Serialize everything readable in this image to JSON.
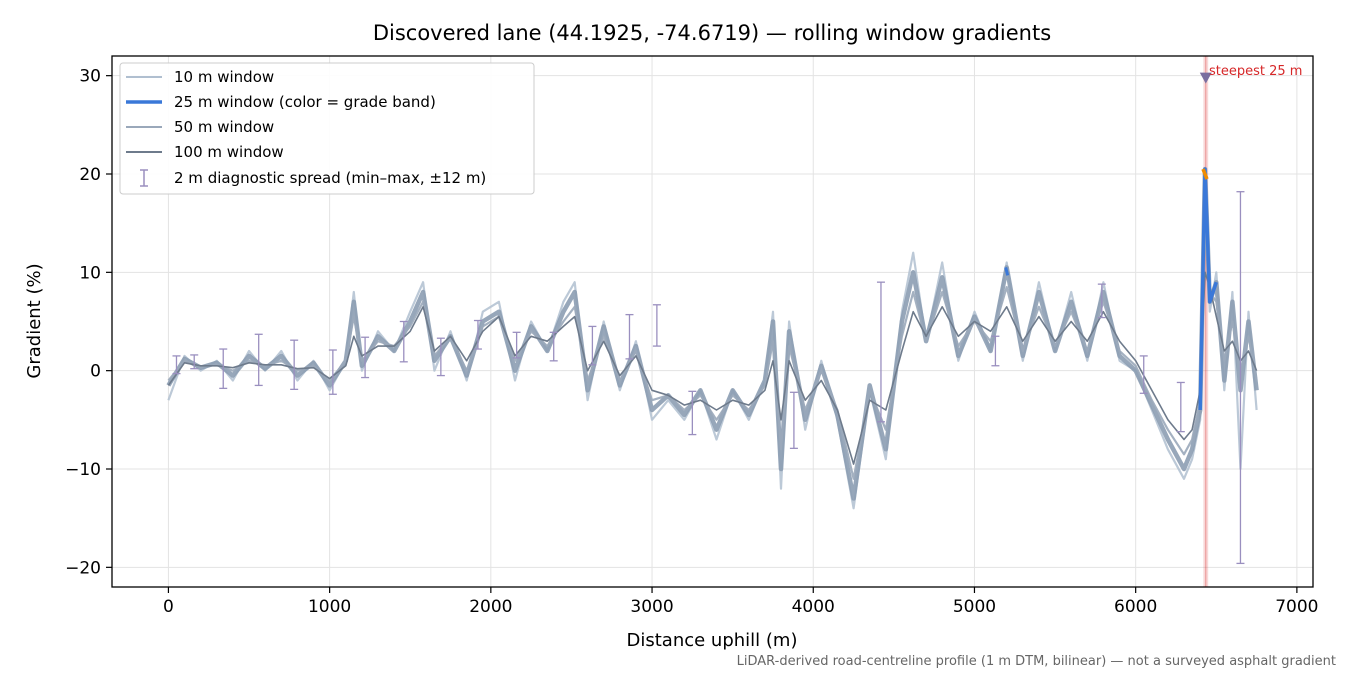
{
  "chart_data": {
    "type": "line",
    "title": "Discovered lane (44.1925, -74.6719) — rolling window gradients",
    "xlabel": "Distance uphill (m)",
    "ylabel": "Gradient (%)",
    "xlim": [
      -350,
      7100
    ],
    "ylim": [
      -22,
      32
    ],
    "xticks": [
      0,
      1000,
      2000,
      3000,
      4000,
      5000,
      6000,
      7000
    ],
    "yticks": [
      -20,
      -10,
      0,
      10,
      20,
      30
    ],
    "xtick_labels": [
      "0",
      "1000",
      "2000",
      "3000",
      "4000",
      "5000",
      "6000",
      "7000"
    ],
    "ytick_labels": [
      "−20",
      "−10",
      "0",
      "10",
      "20",
      "30"
    ],
    "grid": true,
    "legend_position": "top-left",
    "footnote": "LiDAR-derived road-centreline profile (1 m DTM, bilinear) — not a surveyed asphalt gradient",
    "annotation": {
      "text": "steepest 25 m",
      "x": 6435,
      "y": 29.8,
      "band": [
        6420,
        6450
      ]
    },
    "colors": {
      "w10": "#b0bfd0",
      "w25": "#8c9db2",
      "w25_highlight": "#3a78d8",
      "w25_orange": "#f08c00",
      "w50": "#9aa8ba",
      "w100": "#6e7b8c",
      "spread": "#9a8fbf",
      "steepest": "#d62728",
      "marker": "#7a6ea0"
    },
    "series": [
      {
        "name": "10 m window",
        "x": [
          0,
          100,
          200,
          300,
          400,
          500,
          600,
          700,
          800,
          900,
          1000,
          1100,
          1150,
          1200,
          1300,
          1400,
          1500,
          1580,
          1650,
          1750,
          1850,
          1950,
          2050,
          2150,
          2250,
          2350,
          2450,
          2520,
          2600,
          2700,
          2800,
          2900,
          3000,
          3100,
          3200,
          3300,
          3400,
          3500,
          3600,
          3700,
          3750,
          3800,
          3850,
          3950,
          4050,
          4150,
          4250,
          4350,
          4450,
          4550,
          4620,
          4700,
          4800,
          4900,
          5000,
          5100,
          5200,
          5300,
          5400,
          5500,
          5600,
          5700,
          5800,
          5900,
          6000,
          6100,
          6200,
          6300,
          6350,
          6400,
          6430,
          6460,
          6500,
          6550,
          6600,
          6650,
          6700,
          6750
        ],
        "y": [
          -3,
          1.5,
          0,
          1,
          -1,
          2,
          0,
          2,
          -1,
          1,
          -2,
          1,
          8,
          0,
          4,
          2,
          6,
          9,
          0,
          4,
          -1,
          6,
          7,
          -1,
          5,
          2,
          7,
          9,
          -3,
          5,
          -2,
          3,
          -5,
          -3,
          -5,
          -2,
          -7,
          -2,
          -5,
          -1,
          6,
          -12,
          5,
          -6,
          1,
          -5,
          -14,
          -2,
          -9,
          6,
          12,
          3,
          11,
          1,
          6,
          2,
          11,
          1,
          9,
          2,
          8,
          1,
          9,
          1,
          0,
          -4,
          -8,
          -11,
          -9,
          -5,
          20,
          6,
          10,
          -2,
          8,
          -10,
          6,
          -4
        ]
      },
      {
        "name": "25 m window (color = grade band)",
        "x": [
          0,
          100,
          200,
          300,
          400,
          500,
          600,
          700,
          800,
          900,
          1000,
          1100,
          1150,
          1200,
          1300,
          1400,
          1500,
          1580,
          1650,
          1750,
          1850,
          1950,
          2050,
          2150,
          2250,
          2350,
          2450,
          2520,
          2600,
          2700,
          2800,
          2900,
          3000,
          3100,
          3200,
          3300,
          3400,
          3500,
          3600,
          3700,
          3750,
          3800,
          3850,
          3950,
          4050,
          4150,
          4250,
          4350,
          4450,
          4550,
          4620,
          4700,
          4800,
          4900,
          5000,
          5100,
          5200,
          5300,
          5400,
          5500,
          5600,
          5700,
          5800,
          5900,
          6000,
          6100,
          6200,
          6300,
          6350,
          6400,
          6430,
          6460,
          6500,
          6550,
          6600,
          6650,
          6700,
          6750
        ],
        "y": [
          -1.5,
          1.2,
          0.3,
          0.8,
          -0.5,
          1.5,
          0.2,
          1.5,
          -0.5,
          0.8,
          -1.5,
          1,
          7,
          0.5,
          3.5,
          2,
          5,
          8,
          1,
          3.5,
          -0.5,
          5,
          6,
          0,
          4.5,
          2,
          6,
          8,
          -2,
          4.5,
          -1.5,
          2.5,
          -4,
          -2.5,
          -4.5,
          -2,
          -6,
          -2,
          -4.5,
          -1,
          5,
          -10,
          4,
          -5,
          0.5,
          -4.5,
          -13,
          -1.5,
          -8,
          5,
          10,
          3,
          9.5,
          1.5,
          5.5,
          2,
          10.5,
          1.5,
          8,
          2,
          7,
          1.5,
          8,
          1.5,
          0,
          -3.5,
          -7,
          -10,
          -8,
          -4,
          20.5,
          7,
          9,
          -1,
          7,
          -2,
          5,
          -2
        ]
      },
      {
        "name": "50 m window",
        "x": [
          0,
          100,
          200,
          300,
          400,
          500,
          600,
          700,
          800,
          900,
          1000,
          1100,
          1150,
          1200,
          1300,
          1400,
          1500,
          1580,
          1650,
          1750,
          1850,
          1950,
          2050,
          2150,
          2250,
          2350,
          2450,
          2520,
          2600,
          2700,
          2800,
          2900,
          3000,
          3100,
          3200,
          3300,
          3400,
          3500,
          3600,
          3700,
          3750,
          3800,
          3850,
          3950,
          4050,
          4150,
          4250,
          4350,
          4450,
          4550,
          4620,
          4700,
          4800,
          4900,
          5000,
          5100,
          5200,
          5300,
          5400,
          5500,
          5600,
          5700,
          5800,
          5900,
          6000,
          6100,
          6200,
          6300,
          6350,
          6400,
          6430,
          6460,
          6500,
          6550,
          6600,
          6650,
          6700,
          6750
        ],
        "y": [
          -1,
          1,
          0.4,
          0.6,
          0,
          1,
          0.5,
          1,
          0,
          0.5,
          -1,
          1,
          5.5,
          1,
          3,
          2.5,
          4.5,
          7,
          1.5,
          3.5,
          0,
          4.5,
          5.5,
          1,
          4,
          2.5,
          5,
          6.5,
          -1,
          3.5,
          -1,
          2,
          -3,
          -2.5,
          -4,
          -2.5,
          -5,
          -2.5,
          -4,
          -1.5,
          3,
          -8,
          2.5,
          -4,
          0,
          -4,
          -11,
          -2,
          -6,
          3.5,
          8,
          3,
          8,
          2.5,
          5,
          3,
          8.5,
          2,
          6.5,
          2.5,
          6,
          2,
          7,
          2,
          0.5,
          -3,
          -6,
          -8.5,
          -7,
          -3,
          15,
          8,
          7,
          1,
          5,
          0,
          3.5,
          -1
        ]
      },
      {
        "name": "100 m window",
        "x": [
          0,
          100,
          200,
          300,
          400,
          500,
          600,
          700,
          800,
          900,
          1000,
          1100,
          1150,
          1200,
          1300,
          1400,
          1500,
          1580,
          1650,
          1750,
          1850,
          1950,
          2050,
          2150,
          2250,
          2350,
          2450,
          2520,
          2600,
          2700,
          2800,
          2900,
          3000,
          3100,
          3200,
          3300,
          3400,
          3500,
          3600,
          3700,
          3750,
          3800,
          3850,
          3950,
          4050,
          4150,
          4250,
          4350,
          4450,
          4550,
          4620,
          4700,
          4800,
          4900,
          5000,
          5100,
          5200,
          5300,
          5400,
          5500,
          5600,
          5700,
          5800,
          5900,
          6000,
          6100,
          6200,
          6300,
          6350,
          6400,
          6430,
          6460,
          6500,
          6550,
          6600,
          6650,
          6700,
          6750
        ],
        "y": [
          -1.5,
          0.8,
          0.5,
          0.5,
          0.3,
          0.8,
          0.6,
          0.6,
          0.2,
          0.3,
          -0.8,
          0.5,
          3.5,
          1.5,
          2.5,
          2.5,
          4,
          6.5,
          2,
          3.5,
          1,
          4,
          5.5,
          1.5,
          3.5,
          3,
          4.5,
          5.5,
          0,
          3,
          -0.5,
          1.5,
          -2,
          -2.5,
          -3.5,
          -3,
          -4,
          -3,
          -3.5,
          -2,
          1,
          -5,
          1,
          -3,
          -1,
          -4,
          -9.5,
          -3,
          -4,
          2,
          6,
          3.5,
          6.5,
          3.5,
          5,
          4,
          6.5,
          3,
          5.5,
          3,
          5,
          3,
          6,
          3,
          1,
          -2,
          -5,
          -7,
          -6,
          -2,
          10,
          8.5,
          5.5,
          2,
          3,
          1,
          2,
          0
        ]
      }
    ],
    "spread": {
      "name": "2 m diagnostic spread (min–max, ±12 m)",
      "points": [
        {
          "x": 50,
          "min": -0.3,
          "max": 1.5
        },
        {
          "x": 160,
          "min": 0.2,
          "max": 1.6
        },
        {
          "x": 340,
          "min": -1.8,
          "max": 2.2
        },
        {
          "x": 560,
          "min": -1.5,
          "max": 3.7
        },
        {
          "x": 780,
          "min": -1.9,
          "max": 3.1
        },
        {
          "x": 1020,
          "min": -2.4,
          "max": 2.1
        },
        {
          "x": 1220,
          "min": -0.7,
          "max": 3.4
        },
        {
          "x": 1460,
          "min": 0.9,
          "max": 5.0
        },
        {
          "x": 1690,
          "min": -0.5,
          "max": 3.3
        },
        {
          "x": 1920,
          "min": 2.2,
          "max": 5.1
        },
        {
          "x": 2160,
          "min": 1.3,
          "max": 3.9
        },
        {
          "x": 2390,
          "min": 1.0,
          "max": 3.9
        },
        {
          "x": 2630,
          "min": 0.6,
          "max": 4.5
        },
        {
          "x": 2860,
          "min": 1.2,
          "max": 5.7
        },
        {
          "x": 3030,
          "min": 2.5,
          "max": 6.7
        },
        {
          "x": 3250,
          "min": -6.5,
          "max": -2.1
        },
        {
          "x": 3880,
          "min": -7.9,
          "max": -2.2
        },
        {
          "x": 4420,
          "min": -5.2,
          "max": 9.0
        },
        {
          "x": 5130,
          "min": 0.5,
          "max": 3.5
        },
        {
          "x": 5790,
          "min": 5.4,
          "max": 8.8
        },
        {
          "x": 6050,
          "min": -2.3,
          "max": 1.5
        },
        {
          "x": 6280,
          "min": -6.2,
          "max": -1.2
        },
        {
          "x": 6650,
          "min": -19.6,
          "max": 18.2
        }
      ]
    }
  }
}
